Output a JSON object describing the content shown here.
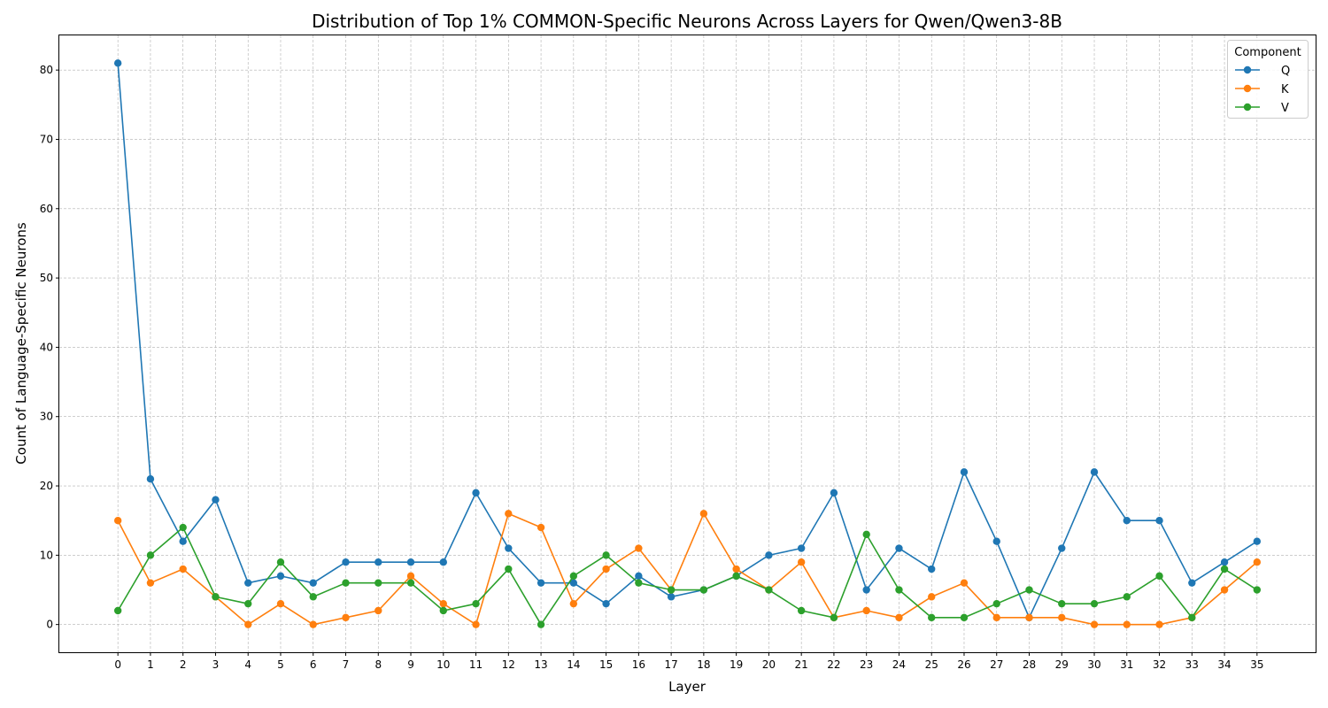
{
  "chart_data": {
    "type": "line",
    "title": "Distribution of Top 1% COMMON-Specific Neurons Across Layers for Qwen/Qwen3-8B",
    "xlabel": "Layer",
    "ylabel": "Count of Language-Specific Neurons",
    "x": [
      0,
      1,
      2,
      3,
      4,
      5,
      6,
      7,
      8,
      9,
      10,
      11,
      12,
      13,
      14,
      15,
      16,
      17,
      18,
      19,
      20,
      21,
      22,
      23,
      24,
      25,
      26,
      27,
      28,
      29,
      30,
      31,
      32,
      33,
      34,
      35
    ],
    "yticks": [
      0,
      10,
      20,
      30,
      40,
      50,
      60,
      70,
      80
    ],
    "ylim": [
      -4,
      85
    ],
    "xlim": [
      -1.8,
      36.8
    ],
    "grid": true,
    "legend": {
      "title": "Component",
      "position": "top-right"
    },
    "series": [
      {
        "name": "Q",
        "color": "#1f77b4",
        "values": [
          81,
          21,
          12,
          18,
          6,
          7,
          6,
          9,
          9,
          9,
          9,
          19,
          11,
          6,
          6,
          3,
          7,
          4,
          5,
          7,
          10,
          11,
          19,
          5,
          11,
          8,
          22,
          12,
          1,
          11,
          22,
          15,
          15,
          6,
          9,
          12
        ]
      },
      {
        "name": "K",
        "color": "#ff7f0e",
        "values": [
          15,
          6,
          8,
          4,
          0,
          3,
          0,
          1,
          2,
          7,
          3,
          0,
          16,
          14,
          3,
          8,
          11,
          5,
          16,
          8,
          5,
          9,
          1,
          2,
          1,
          4,
          6,
          1,
          1,
          1,
          0,
          0,
          0,
          1,
          5,
          9
        ]
      },
      {
        "name": "V",
        "color": "#2ca02c",
        "values": [
          2,
          10,
          14,
          4,
          3,
          9,
          4,
          6,
          6,
          6,
          2,
          3,
          8,
          0,
          7,
          10,
          6,
          5,
          5,
          7,
          5,
          2,
          1,
          13,
          5,
          1,
          1,
          3,
          5,
          3,
          3,
          4,
          7,
          1,
          8,
          5
        ]
      }
    ]
  }
}
